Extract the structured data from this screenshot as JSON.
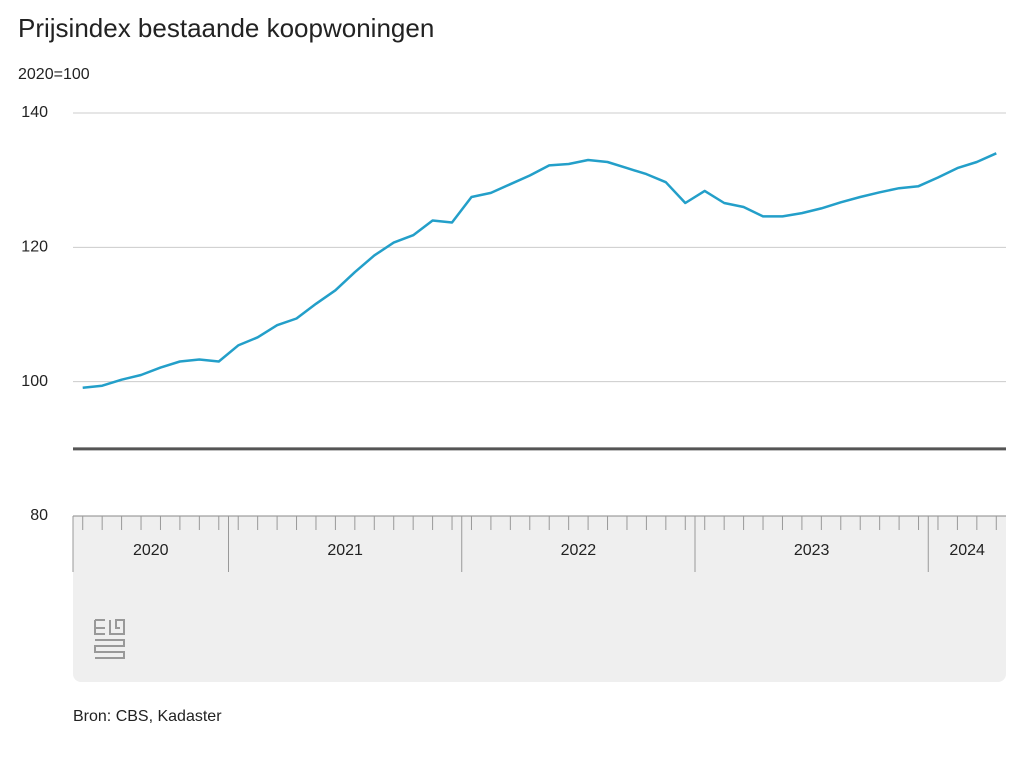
{
  "chart_data": {
    "type": "line",
    "title": "Prijsindex bestaande koopwoningen",
    "subtitle": "2020=100",
    "source": "Bron: CBS, Kadaster",
    "categories": [
      null,
      null,
      null,
      null,
      null,
      null,
      null,
      null,
      null,
      null,
      null,
      null,
      null,
      null,
      null,
      null,
      null,
      null,
      null,
      null,
      null,
      null,
      null,
      null,
      null,
      null,
      null,
      null,
      null,
      null,
      null,
      null,
      null,
      null,
      null,
      null,
      null,
      null,
      null,
      null,
      null,
      null,
      null,
      null,
      null,
      null,
      null,
      null
    ],
    "x_groups": [
      {
        "label": "2020",
        "count": 8
      },
      {
        "label": "2021",
        "count": 12
      },
      {
        "label": "2022",
        "count": 12
      },
      {
        "label": "2023",
        "count": 12
      },
      {
        "label": "2024",
        "count": 4
      }
    ],
    "series": [
      {
        "name": "Prijsindex",
        "color": "#239fc9",
        "values": [
          99.1,
          99.4,
          100.3,
          101.0,
          102.1,
          103.0,
          103.3,
          103.0,
          105.4,
          106.6,
          108.4,
          109.4,
          111.6,
          113.6,
          116.3,
          118.8,
          120.7,
          121.8,
          124.0,
          123.7,
          127.5,
          128.1,
          129.4,
          130.7,
          132.2,
          132.4,
          133.0,
          132.7,
          131.8,
          130.9,
          129.7,
          126.6,
          128.4,
          126.6,
          126.0,
          124.6,
          124.6,
          125.1,
          125.8,
          126.7,
          127.5,
          128.2,
          128.8,
          129.1,
          130.4,
          131.8,
          132.7,
          134.0
        ]
      }
    ],
    "ylim": [
      80,
      140
    ],
    "yticks": [
      80,
      100,
      120,
      140
    ],
    "grid": true,
    "axis_break": 90
  }
}
